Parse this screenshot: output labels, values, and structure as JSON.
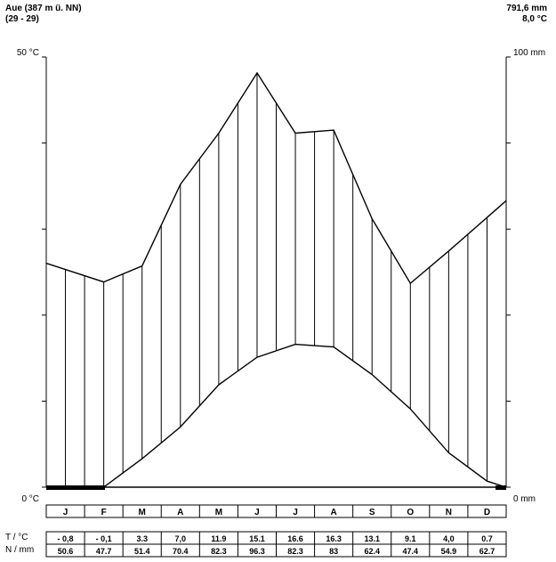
{
  "header": {
    "station": "Aue  (387 m ü. NN)",
    "period": "(29  -  29)",
    "precip_total": "791,6 mm",
    "temp_mean": "8,0 °C"
  },
  "axes": {
    "left_top": "50 °C",
    "left_bottom": "0 °C",
    "right_top": "100 mm",
    "right_bottom": "0 mm"
  },
  "table": {
    "row1_label": "T / °C",
    "row2_label": "N / mm"
  },
  "chart_data": {
    "type": "line",
    "categories": [
      "J",
      "F",
      "M",
      "A",
      "M",
      "J",
      "J",
      "A",
      "S",
      "O",
      "N",
      "D"
    ],
    "temperature_labels": [
      "- 0,8",
      "- 0,1",
      "3.3",
      "7,0",
      "11.9",
      "15.1",
      "16.6",
      "16.3",
      "13.1",
      "9.1",
      "4,0",
      "0.7"
    ],
    "precipitation_labels": [
      "50.6",
      "47.7",
      "51.4",
      "70.4",
      "82.3",
      "96.3",
      "82.3",
      "83",
      "62.4",
      "47.4",
      "54.9",
      "62.7"
    ],
    "series": [
      {
        "name": "T / °C",
        "axis": "left",
        "values": [
          -0.8,
          -0.1,
          3.3,
          7.0,
          11.9,
          15.1,
          16.6,
          16.3,
          13.1,
          9.1,
          4.0,
          0.7
        ]
      },
      {
        "name": "N / mm",
        "axis": "right",
        "values": [
          50.6,
          47.7,
          51.4,
          70.4,
          82.3,
          96.3,
          82.3,
          83,
          62.4,
          47.4,
          54.9,
          62.7
        ]
      }
    ],
    "ylim_left": [
      0,
      50
    ],
    "ylim_right": [
      0,
      100
    ],
    "colors": {
      "line": "#000000",
      "background": "#ffffff"
    }
  }
}
